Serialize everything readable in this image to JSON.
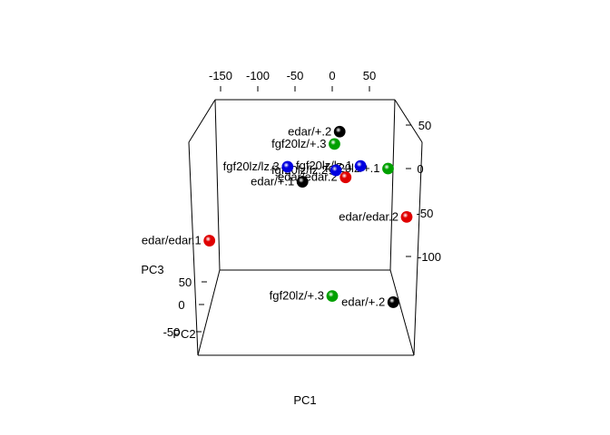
{
  "chart_data": {
    "type": "scatter",
    "projection": "3d",
    "axes": {
      "x": {
        "label": "PC1",
        "ticks": [
          "-150",
          "-100",
          "-50",
          "0",
          "50"
        ]
      },
      "y": {
        "label": "PC2",
        "ticks": [
          "50",
          "0",
          "-50"
        ]
      },
      "z": {
        "label": "PC3",
        "ticks": [
          "50",
          "0",
          "-50",
          "-100"
        ]
      }
    },
    "colors": {
      "edar/edar": "#e00000",
      "edar/+": "#000000",
      "fgf20lz/lz": "#0000e0",
      "fgf20lz/+": "#00a000"
    },
    "points": [
      {
        "label": "edar/+.2",
        "group": "edar/+",
        "pc1": 10,
        "pc3": 42
      },
      {
        "label": "fgf20lz/+.3",
        "group": "fgf20lz/+",
        "pc1": 3,
        "pc3": 28
      },
      {
        "label": "fgf20lz/lz.3",
        "group": "fgf20lz/lz",
        "pc1": -60,
        "pc3": 2
      },
      {
        "label": "fgf20lz/lz.2",
        "group": "fgf20lz/lz",
        "pc1": 5,
        "pc3": -2
      },
      {
        "label": "fgf20lz/lz.1",
        "group": "fgf20lz/lz",
        "pc1": 38,
        "pc3": 3
      },
      {
        "label": "fgf20lz/+.1",
        "group": "fgf20lz/+",
        "pc1": 75,
        "pc3": 0
      },
      {
        "label": "edar/+.1",
        "group": "edar/+",
        "pc1": -40,
        "pc3": -15
      },
      {
        "label": "edar/edar.2",
        "group": "edar/edar",
        "pc1": 18,
        "pc3": -10
      },
      {
        "label": "edar/edar.2",
        "group": "edar/edar",
        "pc1": 100,
        "pc3": -55
      },
      {
        "label": "edar/edar.1",
        "group": "edar/edar",
        "pc1": -165,
        "pc3": -82
      },
      {
        "label": "fgf20lz/+.3",
        "group": "fgf20lz/+",
        "pc1": 0,
        "pc3": -145
      },
      {
        "label": "edar/+.2",
        "group": "edar/+",
        "pc1": 82,
        "pc3": -152
      }
    ]
  }
}
